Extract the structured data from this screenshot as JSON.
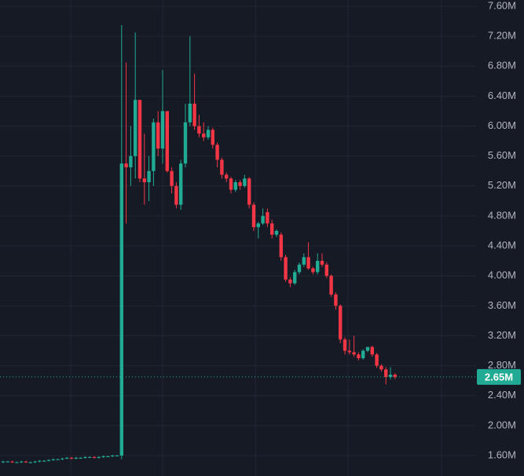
{
  "chart_data": {
    "type": "candlestick",
    "up_color": "#22ab94",
    "down_color": "#f23645",
    "open": [
      1.51,
      1.52,
      1.52,
      1.51,
      1.51,
      1.52,
      1.51,
      1.51,
      1.52,
      1.53,
      1.53,
      1.54,
      1.55,
      1.55,
      1.56,
      1.57,
      1.56,
      1.57,
      1.57,
      1.58,
      1.58,
      1.57,
      1.58,
      1.59,
      1.59,
      1.6,
      1.6,
      5.5,
      5.45,
      5.6,
      6.35,
      5.3,
      5.25,
      5.4,
      6.05,
      5.7,
      6.2,
      5.4,
      5.2,
      4.95,
      5.5,
      6.05,
      6.3,
      6.0,
      5.9,
      5.85,
      5.95,
      5.75,
      5.55,
      5.35,
      5.3,
      5.15,
      5.25,
      5.2,
      5.3,
      4.95,
      4.65,
      4.7,
      4.85,
      4.7,
      4.55,
      4.55,
      4.25,
      3.95,
      3.9,
      4.05,
      4.15,
      4.25,
      4.1,
      4.05,
      4.2,
      4.15,
      4.0,
      3.75,
      3.6,
      3.15,
      3.0,
      2.98,
      2.95,
      2.9,
      3.0,
      3.05,
      2.95,
      2.8,
      2.75,
      2.65,
      2.68
    ],
    "high": [
      1.53,
      1.53,
      1.53,
      1.52,
      1.53,
      1.53,
      1.52,
      1.53,
      1.54,
      1.54,
      1.55,
      1.56,
      1.56,
      1.57,
      1.58,
      1.58,
      1.58,
      1.58,
      1.59,
      1.59,
      1.59,
      1.59,
      1.6,
      1.6,
      1.61,
      1.61,
      7.35,
      6.85,
      6.0,
      7.25,
      6.35,
      5.9,
      5.6,
      6.1,
      6.2,
      6.75,
      6.2,
      5.45,
      5.25,
      5.55,
      6.3,
      7.2,
      6.7,
      6.15,
      6.05,
      6.0,
      5.98,
      5.78,
      5.58,
      5.38,
      5.32,
      5.28,
      5.28,
      5.35,
      5.32,
      4.98,
      4.72,
      4.9,
      4.9,
      4.75,
      4.62,
      4.58,
      4.28,
      3.98,
      4.08,
      4.18,
      4.3,
      4.45,
      4.12,
      4.3,
      4.3,
      4.18,
      4.02,
      3.78,
      3.62,
      3.18,
      3.15,
      3.2,
      2.98,
      3.02,
      3.05,
      3.07,
      2.97,
      2.82,
      2.78,
      2.78,
      2.7
    ],
    "low": [
      1.5,
      1.51,
      1.5,
      1.5,
      1.5,
      1.5,
      1.5,
      1.5,
      1.51,
      1.52,
      1.52,
      1.53,
      1.54,
      1.54,
      1.55,
      1.55,
      1.55,
      1.56,
      1.56,
      1.57,
      1.56,
      1.56,
      1.57,
      1.58,
      1.58,
      1.59,
      1.55,
      4.7,
      5.2,
      5.3,
      5.25,
      4.95,
      5.0,
      5.2,
      5.6,
      5.5,
      5.38,
      5.1,
      4.9,
      4.88,
      5.45,
      6.0,
      5.95,
      5.85,
      5.8,
      5.82,
      5.7,
      5.45,
      5.3,
      5.25,
      5.1,
      5.12,
      5.15,
      5.18,
      4.9,
      4.6,
      4.5,
      4.68,
      4.65,
      4.5,
      4.52,
      4.2,
      3.92,
      3.85,
      3.88,
      4.02,
      4.12,
      4.08,
      4.02,
      4.02,
      4.12,
      3.97,
      3.72,
      3.55,
      3.1,
      2.95,
      2.95,
      2.92,
      2.87,
      2.88,
      2.98,
      2.92,
      2.77,
      2.72,
      2.55,
      2.62,
      2.62
    ],
    "close": [
      1.52,
      1.52,
      1.51,
      1.51,
      1.52,
      1.51,
      1.51,
      1.52,
      1.53,
      1.53,
      1.54,
      1.55,
      1.55,
      1.56,
      1.57,
      1.56,
      1.57,
      1.57,
      1.58,
      1.58,
      1.57,
      1.58,
      1.59,
      1.59,
      1.6,
      1.6,
      5.5,
      5.45,
      5.6,
      6.35,
      5.3,
      5.25,
      5.4,
      6.05,
      5.7,
      6.2,
      5.4,
      5.2,
      4.95,
      5.5,
      6.05,
      6.3,
      6.0,
      5.9,
      5.85,
      5.95,
      5.75,
      5.55,
      5.35,
      5.3,
      5.15,
      5.25,
      5.2,
      5.3,
      4.95,
      4.65,
      4.7,
      4.8,
      4.7,
      4.55,
      4.6,
      4.25,
      3.95,
      3.9,
      4.05,
      4.15,
      4.25,
      4.1,
      4.05,
      4.2,
      4.15,
      4.0,
      3.75,
      3.6,
      3.15,
      3.0,
      2.98,
      2.95,
      2.9,
      3.0,
      3.05,
      2.95,
      2.8,
      2.75,
      2.65,
      2.68,
      2.65
    ],
    "ylim": [
      1.327,
      7.684
    ],
    "yticks": [
      {
        "value": 1.6,
        "label": "1.60M"
      },
      {
        "value": 2.0,
        "label": "2.00M"
      },
      {
        "value": 2.4,
        "label": "2.40M"
      },
      {
        "value": 2.8,
        "label": "2.80M"
      },
      {
        "value": 3.2,
        "label": "3.20M"
      },
      {
        "value": 3.6,
        "label": "3.60M"
      },
      {
        "value": 4.0,
        "label": "4.00M"
      },
      {
        "value": 4.4,
        "label": "4.40M"
      },
      {
        "value": 4.8,
        "label": "4.80M"
      },
      {
        "value": 5.2,
        "label": "5.20M"
      },
      {
        "value": 5.6,
        "label": "5.60M"
      },
      {
        "value": 6.0,
        "label": "6.00M"
      },
      {
        "value": 6.4,
        "label": "6.40M"
      },
      {
        "value": 6.8,
        "label": "6.80M"
      },
      {
        "value": 7.2,
        "label": "7.20M"
      },
      {
        "value": 7.6,
        "label": "7.60M"
      }
    ],
    "grid": true,
    "last_price": {
      "value": 2.65,
      "label": "2.65M"
    }
  }
}
